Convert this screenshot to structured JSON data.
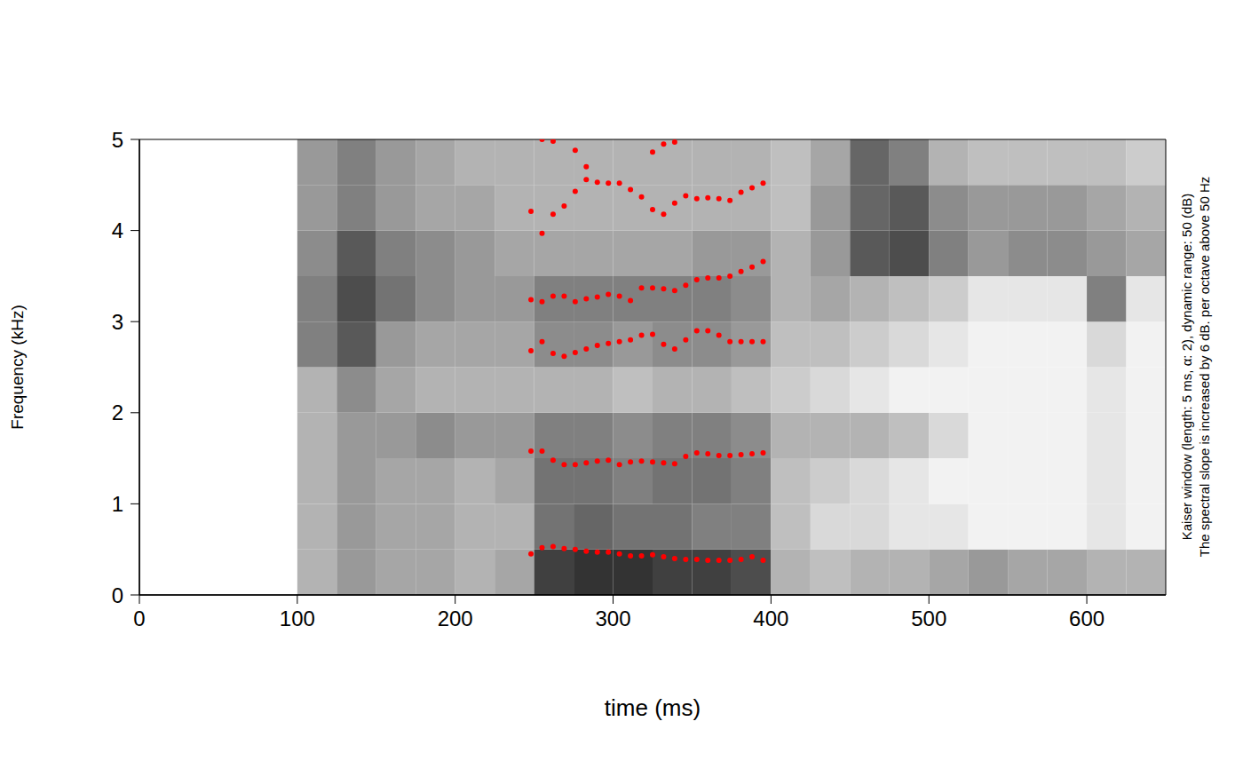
{
  "chart_data": {
    "type": "scatter",
    "x_label": "time (ms)",
    "y_label": "Frequency (kHz)",
    "annotations": [
      "Kaiser window (length: 5 ms, α: 2), dynamic range: 50 (dB)",
      "The spectral slope is increased by 6 dB. per octave above 50 Hz"
    ],
    "xlim": [
      0,
      650
    ],
    "xticks": [
      0,
      100,
      200,
      300,
      400,
      500,
      600
    ],
    "ylim": [
      0,
      5
    ],
    "yticks": [
      0,
      1,
      2,
      3,
      4,
      5
    ],
    "grid": false,
    "marker": "circle",
    "x": [
      248,
      255,
      262,
      269,
      276,
      283,
      290,
      297,
      304,
      311,
      318,
      325,
      332,
      339,
      346,
      353,
      360,
      367,
      374,
      381,
      388,
      395
    ],
    "series": [
      {
        "color": "#ff0000",
        "values": [
          0.45,
          0.52,
          0.53,
          0.51,
          0.5,
          0.48,
          0.47,
          0.47,
          0.45,
          0.43,
          0.43,
          0.44,
          0.42,
          0.4,
          0.39,
          0.39,
          0.38,
          0.38,
          0.38,
          0.39,
          0.42,
          0.38
        ]
      },
      {
        "color": "#ff0000",
        "values": [
          1.58,
          1.58,
          1.48,
          1.43,
          1.43,
          1.45,
          1.47,
          1.48,
          1.43,
          1.46,
          1.47,
          1.46,
          1.45,
          1.44,
          1.52,
          1.56,
          1.55,
          1.53,
          1.53,
          1.54,
          1.55,
          1.56
        ]
      },
      {
        "color": "#ff0000",
        "values": [
          2.68,
          2.78,
          2.65,
          2.62,
          2.66,
          2.7,
          2.74,
          2.76,
          2.78,
          2.8,
          2.85,
          2.86,
          2.75,
          2.7,
          2.8,
          2.9,
          2.9,
          2.85,
          2.78,
          2.78,
          2.78,
          2.78
        ]
      },
      {
        "color": "#ff0000",
        "values": [
          3.24,
          3.22,
          3.28,
          3.28,
          3.22,
          3.25,
          3.27,
          3.3,
          3.28,
          3.23,
          3.37,
          3.37,
          3.36,
          3.34,
          3.4,
          3.46,
          3.48,
          3.48,
          3.5,
          3.55,
          3.6,
          3.66
        ]
      },
      {
        "color": "#ff0000",
        "values": [
          4.21,
          3.97,
          4.18,
          4.27,
          4.43,
          4.56,
          4.53,
          4.52,
          4.52,
          4.45,
          4.37,
          4.23,
          4.18,
          4.3,
          4.38,
          4.35,
          4.36,
          4.35,
          4.33,
          4.42,
          4.47,
          4.52
        ]
      },
      {
        "color": "#ff0000",
        "values": [
          null,
          5.0,
          4.98,
          null,
          4.88,
          4.7,
          null,
          null,
          null,
          null,
          null,
          4.86,
          4.95,
          4.97,
          null,
          null,
          null,
          null,
          null,
          null,
          null,
          null
        ]
      }
    ],
    "spectrogram": {
      "time_bins": [
        0,
        25,
        50,
        75,
        100,
        125,
        150,
        175,
        200,
        225,
        250,
        275,
        300,
        325,
        350,
        375,
        400,
        425,
        450,
        475,
        500,
        525,
        550,
        575,
        600,
        625,
        650
      ],
      "freq_bins": [
        0,
        0.5,
        1,
        1.5,
        2,
        2.5,
        3,
        3.5,
        4,
        4.5,
        5
      ],
      "levels": [
        [
          0,
          0,
          0,
          0,
          0.3,
          0.4,
          0.35,
          0.35,
          0.3,
          0.35,
          0.75,
          0.8,
          0.8,
          0.75,
          0.75,
          0.7,
          0.3,
          0.25,
          0.3,
          0.3,
          0.35,
          0.4,
          0.35,
          0.35,
          0.3,
          0.3
        ],
        [
          0,
          0,
          0,
          0,
          0.3,
          0.4,
          0.35,
          0.35,
          0.3,
          0.3,
          0.55,
          0.6,
          0.55,
          0.55,
          0.5,
          0.5,
          0.25,
          0.15,
          0.15,
          0.1,
          0.1,
          0.05,
          0.05,
          0.05,
          0.1,
          0.05
        ],
        [
          0,
          0,
          0,
          0,
          0.3,
          0.4,
          0.35,
          0.35,
          0.3,
          0.35,
          0.55,
          0.55,
          0.5,
          0.55,
          0.55,
          0.5,
          0.25,
          0.2,
          0.15,
          0.1,
          0.05,
          0.05,
          0.05,
          0.05,
          0.1,
          0.05
        ],
        [
          0,
          0,
          0,
          0,
          0.3,
          0.4,
          0.4,
          0.45,
          0.4,
          0.4,
          0.5,
          0.5,
          0.45,
          0.5,
          0.5,
          0.45,
          0.3,
          0.3,
          0.3,
          0.25,
          0.15,
          0.05,
          0.05,
          0.05,
          0.1,
          0.05
        ],
        [
          0,
          0,
          0,
          0,
          0.3,
          0.45,
          0.35,
          0.3,
          0.3,
          0.3,
          0.3,
          0.3,
          0.25,
          0.3,
          0.3,
          0.25,
          0.2,
          0.15,
          0.1,
          0.05,
          0.05,
          0.05,
          0.05,
          0.05,
          0.1,
          0.05
        ],
        [
          0,
          0,
          0,
          0,
          0.5,
          0.65,
          0.4,
          0.35,
          0.35,
          0.35,
          0.45,
          0.45,
          0.4,
          0.45,
          0.45,
          0.4,
          0.25,
          0.25,
          0.2,
          0.15,
          0.1,
          0.05,
          0.05,
          0.05,
          0.15,
          0.05
        ],
        [
          0,
          0,
          0,
          0,
          0.5,
          0.7,
          0.55,
          0.45,
          0.4,
          0.4,
          0.5,
          0.5,
          0.5,
          0.5,
          0.5,
          0.45,
          0.3,
          0.35,
          0.3,
          0.25,
          0.2,
          0.1,
          0.1,
          0.1,
          0.5,
          0.1
        ],
        [
          0,
          0,
          0,
          0,
          0.45,
          0.65,
          0.5,
          0.45,
          0.4,
          0.35,
          0.35,
          0.35,
          0.35,
          0.35,
          0.4,
          0.4,
          0.3,
          0.4,
          0.65,
          0.7,
          0.5,
          0.4,
          0.45,
          0.45,
          0.4,
          0.35
        ],
        [
          0,
          0,
          0,
          0,
          0.4,
          0.5,
          0.4,
          0.35,
          0.35,
          0.3,
          0.3,
          0.3,
          0.3,
          0.3,
          0.3,
          0.3,
          0.25,
          0.4,
          0.6,
          0.65,
          0.45,
          0.4,
          0.4,
          0.4,
          0.35,
          0.3
        ],
        [
          0,
          0,
          0,
          0,
          0.4,
          0.5,
          0.4,
          0.35,
          0.3,
          0.3,
          0.3,
          0.3,
          0.3,
          0.3,
          0.3,
          0.3,
          0.25,
          0.35,
          0.6,
          0.5,
          0.3,
          0.25,
          0.25,
          0.25,
          0.25,
          0.2
        ]
      ]
    }
  }
}
